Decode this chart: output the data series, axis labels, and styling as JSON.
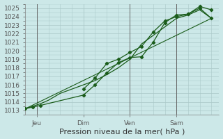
{
  "xlabel": "Pression niveau de la mer( hPa )",
  "bg_color": "#cce8e8",
  "grid_color": "#aac8c8",
  "line_color": "#1a5c1a",
  "vline_color": "#666666",
  "ylim": [
    1012.5,
    1025.5
  ],
  "xlim": [
    0,
    100
  ],
  "x_ticks": [
    6,
    30,
    54,
    78
  ],
  "x_tick_labels": [
    "Jeu",
    "Dim",
    "Ven",
    "Sam"
  ],
  "y_ticks": [
    1013,
    1014,
    1015,
    1016,
    1017,
    1018,
    1019,
    1020,
    1021,
    1022,
    1023,
    1024,
    1025
  ],
  "vlines": [
    6,
    54,
    78
  ],
  "series1_x": [
    0,
    4,
    8,
    30,
    36,
    42,
    48,
    54,
    60,
    66,
    72,
    78,
    84,
    90,
    96
  ],
  "series1_y": [
    1013.2,
    1013.4,
    1013.6,
    1014.8,
    1016.0,
    1017.4,
    1018.6,
    1019.2,
    1019.3,
    1021.0,
    1023.3,
    1024.2,
    1024.3,
    1025.0,
    1023.8
  ],
  "series2_x": [
    30,
    36,
    42,
    48,
    54,
    60,
    66,
    72,
    78,
    84,
    90,
    96
  ],
  "series2_y": [
    1015.5,
    1016.8,
    1018.5,
    1019.0,
    1019.8,
    1020.5,
    1022.2,
    1023.5,
    1024.0,
    1024.3,
    1025.2,
    1024.8
  ],
  "series3_x": [
    0,
    4,
    8,
    12,
    18,
    24,
    30,
    36,
    42,
    48,
    54,
    60,
    66,
    72,
    78,
    84,
    90,
    96
  ],
  "series3_y": [
    1013.2,
    1013.5,
    1013.8,
    1014.2,
    1015.0,
    1015.5,
    1016.0,
    1016.5,
    1017.2,
    1018.0,
    1019.0,
    1020.8,
    1021.8,
    1022.8,
    1023.8,
    1024.2,
    1024.8,
    1023.8
  ],
  "trend_x": [
    0,
    96
  ],
  "trend_y": [
    1013.2,
    1023.8
  ],
  "figsize": [
    3.2,
    2.0
  ],
  "dpi": 100,
  "xlabel_fontsize": 8,
  "tick_fontsize": 6.5
}
